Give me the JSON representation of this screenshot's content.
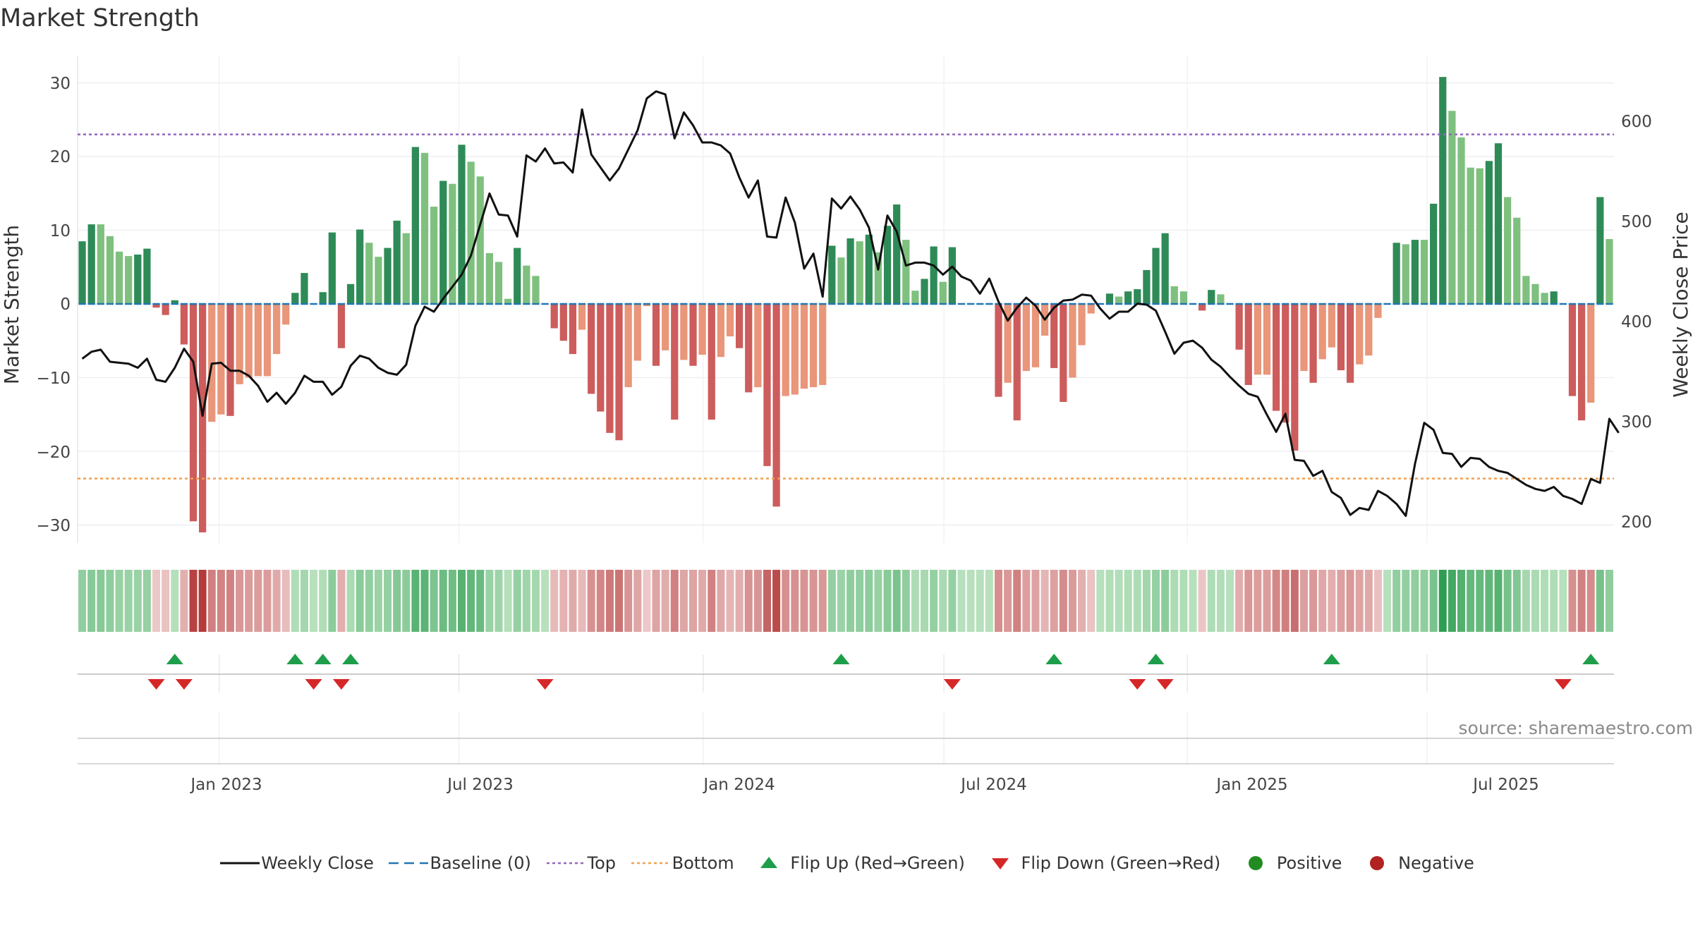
{
  "title": "Market Strength",
  "source": "source: sharemaestro.com",
  "colors": {
    "pos_dark": "#2e8b57",
    "pos_light": "#7fc07f",
    "neg_dark": "#cd5c5c",
    "neg_light": "#e9967a",
    "baseline": "#1f77b4",
    "top": "#9467bd",
    "bottom": "#f0a050",
    "flip_up": "#1e9e4a",
    "flip_down": "#d62728",
    "price": "#111111"
  },
  "chart_data": {
    "type": "bar",
    "title": "Market Strength",
    "ylabel": "Market Strength",
    "ylabel_right": "Weekly Close Price",
    "ylim": [
      -31,
      33
    ],
    "ylim_right": [
      198,
      650
    ],
    "yticks": [
      30,
      20,
      10,
      0,
      -10,
      -20,
      -30
    ],
    "yticks_right": [
      600,
      500,
      400,
      300,
      200
    ],
    "xtick_labels": [
      "Jan 2023",
      "Jul 2023",
      "Jan 2024",
      "Jul 2024",
      "Jan 2025",
      "Jul 2025"
    ],
    "xtick_weeks": [
      15.3,
      41.2,
      67.6,
      93.6,
      119.9,
      145.8
    ],
    "top_line": 23,
    "bottom_line": -23.7,
    "grid": true,
    "legend_position": "bottom",
    "legend": [
      "Weekly Close",
      "Baseline (0)",
      "Top",
      "Bottom",
      "Flip Up (Red→Green)",
      "Flip Down (Green→Red)",
      "Positive",
      "Negative"
    ],
    "strength": [
      8.5,
      10.8,
      10.8,
      9.2,
      7.1,
      6.5,
      6.7,
      7.5,
      -0.5,
      -1.5,
      0.5,
      -5.5,
      -29.5,
      -31,
      -16,
      -15,
      -15.2,
      -10.9,
      -10,
      -9.8,
      -9.8,
      -6.8,
      -2.8,
      1.5,
      4.2,
      0,
      1.6,
      9.7,
      -6,
      2.7,
      10.1,
      8.3,
      6.4,
      7.6,
      11.3,
      9.6,
      21.3,
      20.5,
      13.2,
      16.7,
      16.3,
      21.6,
      19.3,
      17.3,
      6.9,
      5.7,
      0.7,
      7.6,
      5.2,
      3.8,
      0,
      -3.3,
      -5,
      -6.8,
      -3.5,
      -12.2,
      -14.6,
      -17.5,
      -18.5,
      -11.3,
      -7.7,
      -0.3,
      -8.4,
      -6.3,
      -15.7,
      -7.6,
      -8.4,
      -6.9,
      -15.7,
      -7.2,
      -4.4,
      -6,
      -12,
      -11.3,
      -22,
      -27.5,
      -12.5,
      -12.3,
      -11.5,
      -11.3,
      -11,
      7.9,
      6.3,
      8.9,
      8.5,
      9.4,
      7,
      10.6,
      13.5,
      8.7,
      1.8,
      3.4,
      7.8,
      3,
      7.7,
      0,
      0,
      0,
      0,
      -12.6,
      -10.7,
      -15.8,
      -9.1,
      -8.6,
      -4.3,
      -8.7,
      -13.3,
      -10,
      -5.6,
      -1.3,
      0,
      1.4,
      1,
      1.7,
      2,
      4.6,
      7.6,
      9.6,
      2.4,
      1.7,
      0,
      -0.9,
      1.9,
      1.3,
      0,
      -6.2,
      -11,
      -9.6,
      -9.6,
      -14.5,
      -16.1,
      -19.9,
      -9.1,
      -10.7,
      -7.5,
      -5.9,
      -9,
      -10.7,
      -8.2,
      -7,
      -1.9,
      0,
      8.3,
      8.1,
      8.7,
      8.7,
      13.6,
      30.8,
      26.2,
      22.6,
      18.5,
      18.4,
      19.4,
      21.8,
      14.5,
      11.7,
      3.8,
      2.7,
      1.5,
      1.7,
      0,
      -12.5,
      -15.8,
      -13.4,
      14.5,
      8.8
    ],
    "close": [
      365,
      372,
      374,
      362,
      361,
      360,
      356,
      365,
      344,
      342,
      356,
      375,
      362,
      308,
      360,
      361,
      353,
      353,
      348,
      338,
      322,
      331,
      320,
      331,
      348,
      342,
      342,
      329,
      337,
      358,
      368,
      365,
      356,
      351,
      349,
      359,
      398,
      417,
      412,
      425,
      437,
      449,
      468,
      499,
      530,
      509,
      508,
      487,
      568,
      562,
      575,
      560,
      561,
      551,
      614,
      569,
      556,
      543,
      555,
      574,
      593,
      625,
      632,
      629,
      585,
      611,
      598,
      581,
      581,
      578,
      570,
      546,
      526,
      543,
      487,
      486,
      526,
      501,
      455,
      470,
      427,
      525,
      515,
      527,
      514,
      496,
      454,
      508,
      492,
      458,
      461,
      461,
      458,
      449,
      457,
      447,
      443,
      430,
      445,
      422,
      403,
      416,
      426,
      418,
      404,
      416,
      423,
      424,
      429,
      428,
      415,
      405,
      412,
      412,
      420,
      419,
      413,
      392,
      370,
      381,
      383,
      376,
      364,
      357,
      347,
      338,
      330,
      327,
      309,
      292,
      310,
      264,
      263,
      248,
      253,
      232,
      226,
      209,
      216,
      214,
      233,
      228,
      220,
      208,
      260,
      301,
      294,
      271,
      270,
      257,
      266,
      265,
      257,
      253,
      251,
      245,
      239,
      235,
      233,
      237,
      228,
      225,
      220,
      245,
      241,
      305,
      291
    ],
    "flip_up_weeks": [
      10,
      23,
      26,
      29,
      82,
      105,
      116,
      135,
      163
    ],
    "flip_down_weeks": [
      8,
      11,
      25,
      28,
      50,
      94,
      114,
      117,
      160
    ]
  },
  "x_axis": {
    "labels": [
      "Jan 2023",
      "Jul 2023",
      "Jan 2024",
      "Jul 2024",
      "Jan 2025",
      "Jul 2025"
    ]
  },
  "y_axis": {
    "label": "Market Strength",
    "ticks": [
      "30",
      "20",
      "10",
      "0",
      "−10",
      "−20",
      "−30"
    ]
  },
  "y_axis_right": {
    "label": "Weekly Close Price",
    "ticks": [
      "600",
      "500",
      "400",
      "300",
      "200"
    ]
  },
  "legend": {
    "close": "Weekly Close",
    "baseline": "Baseline (0)",
    "top": "Top",
    "bottom": "Bottom",
    "flip_up": "Flip Up (Red→Green)",
    "flip_down": "Flip Down (Green→Red)",
    "positive": "Positive",
    "negative": "Negative"
  }
}
